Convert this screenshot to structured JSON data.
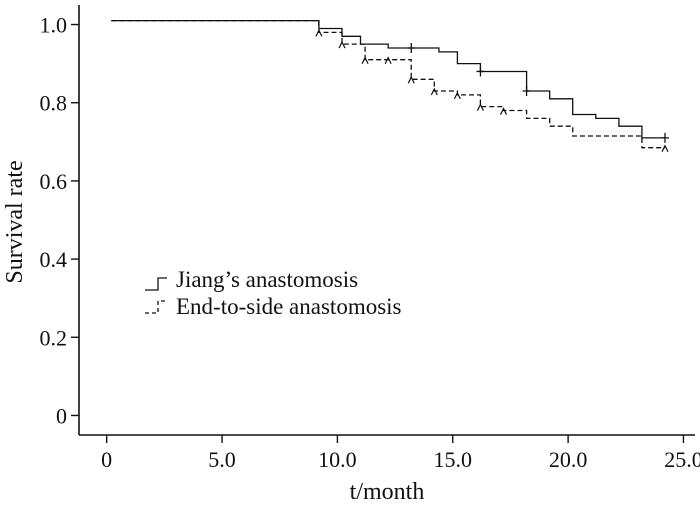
{
  "chart_data": {
    "type": "line",
    "title": "",
    "xlabel": "t/month",
    "ylabel": "Survival rate",
    "xlim": [
      -1.2,
      25.5
    ],
    "ylim": [
      -0.05,
      1.05
    ],
    "x_ticks": [
      0,
      5,
      10,
      15,
      20,
      25
    ],
    "x_tick_labels": [
      "0",
      "5.0",
      "10.0",
      "15.0",
      "20.0",
      "25.0"
    ],
    "y_ticks": [
      0,
      0.2,
      0.4,
      0.6,
      0.8,
      1.0
    ],
    "y_tick_labels": [
      "0",
      "0.2",
      "0.4",
      "0.6",
      "0.8",
      "1.0"
    ],
    "grid": false,
    "legend_position": "center-left",
    "series": [
      {
        "name": "Jiang’s anastomosis",
        "line_style": "solid",
        "color": "#111111",
        "steps": [
          [
            0.2,
            1.01
          ],
          [
            9.2,
            1.01
          ],
          [
            9.2,
            0.99
          ],
          [
            10.2,
            0.99
          ],
          [
            10.2,
            0.97
          ],
          [
            11.0,
            0.97
          ],
          [
            11.0,
            0.95
          ],
          [
            12.2,
            0.95
          ],
          [
            12.2,
            0.94
          ],
          [
            14.4,
            0.94
          ],
          [
            14.4,
            0.93
          ],
          [
            15.2,
            0.93
          ],
          [
            15.2,
            0.9
          ],
          [
            16.2,
            0.9
          ],
          [
            16.2,
            0.88
          ],
          [
            18.2,
            0.88
          ],
          [
            18.2,
            0.83
          ],
          [
            19.2,
            0.83
          ],
          [
            19.2,
            0.81
          ],
          [
            20.2,
            0.81
          ],
          [
            20.2,
            0.77
          ],
          [
            21.2,
            0.77
          ],
          [
            21.2,
            0.76
          ],
          [
            22.2,
            0.76
          ],
          [
            22.2,
            0.74
          ],
          [
            23.2,
            0.74
          ],
          [
            23.2,
            0.71
          ],
          [
            24.2,
            0.71
          ]
        ],
        "censored": [
          [
            13.2,
            0.94
          ],
          [
            16.2,
            0.88
          ],
          [
            18.2,
            0.83
          ],
          [
            24.2,
            0.71
          ]
        ]
      },
      {
        "name": "End-to-side anastomosis",
        "line_style": "dashed",
        "color": "#111111",
        "steps": [
          [
            0.2,
            1.01
          ],
          [
            9.2,
            1.01
          ],
          [
            9.2,
            0.98
          ],
          [
            10.2,
            0.98
          ],
          [
            10.2,
            0.95
          ],
          [
            11.2,
            0.95
          ],
          [
            11.2,
            0.91
          ],
          [
            13.2,
            0.91
          ],
          [
            13.2,
            0.86
          ],
          [
            14.2,
            0.86
          ],
          [
            14.2,
            0.83
          ],
          [
            15.2,
            0.83
          ],
          [
            15.2,
            0.82
          ],
          [
            16.2,
            0.82
          ],
          [
            16.2,
            0.79
          ],
          [
            17.2,
            0.79
          ],
          [
            17.2,
            0.78
          ],
          [
            18.2,
            0.78
          ],
          [
            18.2,
            0.76
          ],
          [
            19.2,
            0.76
          ],
          [
            19.2,
            0.74
          ],
          [
            20.2,
            0.74
          ],
          [
            20.2,
            0.715
          ],
          [
            23.2,
            0.715
          ],
          [
            23.2,
            0.685
          ],
          [
            24.2,
            0.685
          ]
        ],
        "censored": [
          [
            9.2,
            0.98
          ],
          [
            10.2,
            0.95
          ],
          [
            11.2,
            0.91
          ],
          [
            12.2,
            0.91
          ],
          [
            13.2,
            0.86
          ],
          [
            14.2,
            0.83
          ],
          [
            15.2,
            0.82
          ],
          [
            16.2,
            0.79
          ],
          [
            17.2,
            0.78
          ],
          [
            24.2,
            0.685
          ]
        ]
      }
    ]
  }
}
